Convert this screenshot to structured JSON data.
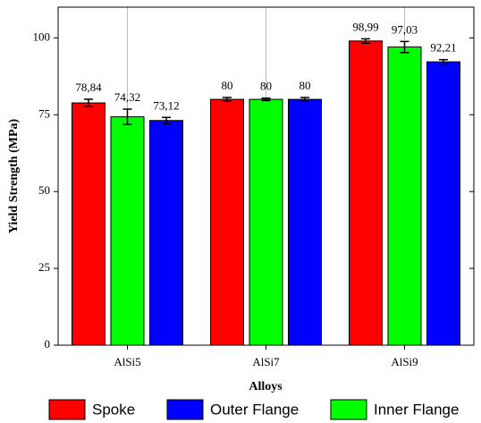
{
  "chart_data": {
    "type": "bar",
    "x_label": "Alloys",
    "y_label": "Yield Strength (MPa)",
    "categories": [
      "AlSi5",
      "AlSi7",
      "AlSi9"
    ],
    "series": [
      {
        "name": "Spoke",
        "color": "#ff0000",
        "values": [
          78.84,
          80,
          98.99
        ],
        "value_labels": [
          "78,84",
          "80",
          "98,99"
        ],
        "errors": [
          1.2,
          0.6,
          0.7
        ]
      },
      {
        "name": "Inner Flange",
        "color": "#00ff00",
        "values": [
          74.32,
          80,
          97.03
        ],
        "value_labels": [
          "74,32",
          "80",
          "97,03"
        ],
        "errors": [
          2.5,
          0.4,
          1.8
        ]
      },
      {
        "name": "Outer Flange",
        "color": "#0000ff",
        "values": [
          73.12,
          80,
          92.21
        ],
        "value_labels": [
          "73,12",
          "80",
          "92,21"
        ],
        "errors": [
          1.0,
          0.6,
          0.7
        ]
      }
    ],
    "ylim": [
      0,
      110
    ],
    "yticks": [
      0,
      25,
      50,
      75,
      100
    ],
    "grid": true
  }
}
